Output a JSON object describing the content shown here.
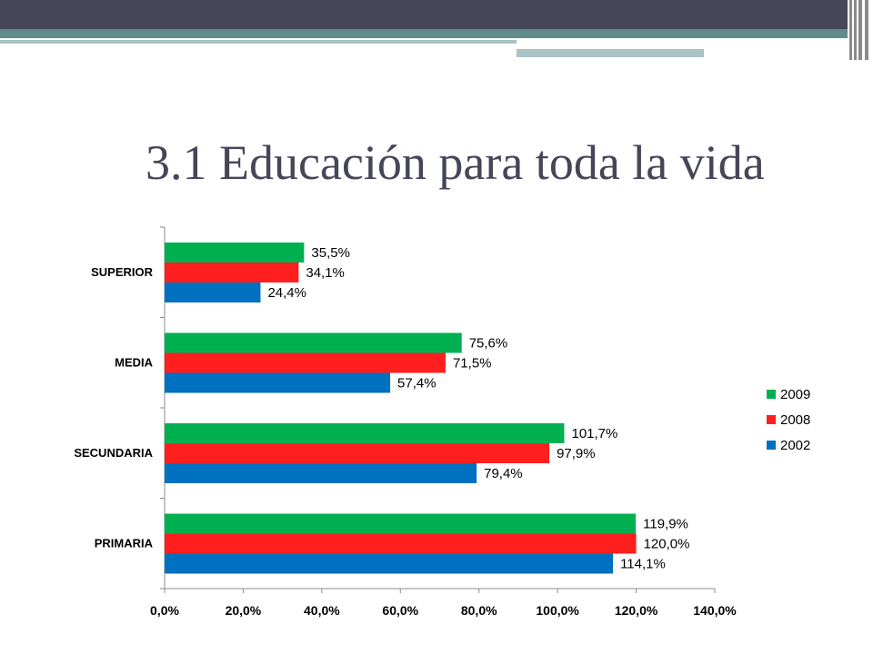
{
  "slide": {
    "title": "3.1 Educación  para toda la vida"
  },
  "theme": {
    "header_dark": "#464659",
    "accent_teal": "#5f8b8b",
    "accent_light": "#a9c3c6"
  },
  "chart_data": {
    "type": "bar",
    "orientation": "horizontal",
    "categories": [
      "SUPERIOR",
      "MEDIA",
      "SECUNDARIA",
      "PRIMARIA"
    ],
    "series": [
      {
        "name": "2009",
        "color": "#00b050",
        "values": [
          35.5,
          75.6,
          101.7,
          119.9
        ],
        "labels": [
          "35,5%",
          "75,6%",
          "101,7%",
          "119,9%"
        ]
      },
      {
        "name": "2008",
        "color": "#ff1f1f",
        "values": [
          34.1,
          71.5,
          97.9,
          120.0
        ],
        "labels": [
          "34,1%",
          "71,5%",
          "97,9%",
          "120,0%"
        ]
      },
      {
        "name": "2002",
        "color": "#0070c0",
        "values": [
          24.4,
          57.4,
          79.4,
          114.1
        ],
        "labels": [
          "24,4%",
          "57,4%",
          "79,4%",
          "114,1%"
        ]
      }
    ],
    "xlim": [
      0,
      140
    ],
    "xticks": [
      "0,0%",
      "20,0%",
      "40,0%",
      "60,0%",
      "80,0%",
      "100,0%",
      "120,0%",
      "140,0%"
    ],
    "grid": false,
    "legend": {
      "position": "right",
      "order": [
        "2009",
        "2008",
        "2002"
      ]
    }
  }
}
